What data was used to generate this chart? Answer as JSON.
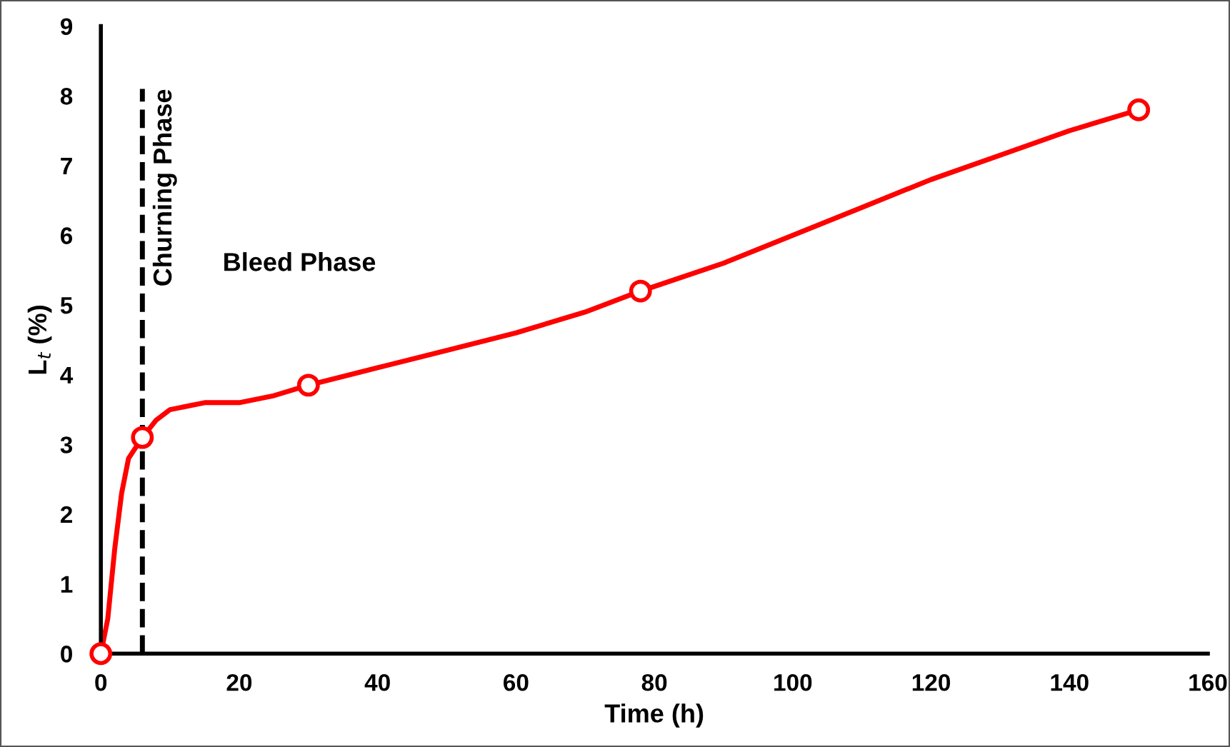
{
  "chart_data": {
    "type": "line",
    "xlabel": "Time (h)",
    "ylabel": "L$_{t}$ (%)",
    "xlim": [
      0,
      160
    ],
    "ylim": [
      0,
      9
    ],
    "xticks": [
      0,
      20,
      40,
      60,
      80,
      100,
      120,
      140,
      160
    ],
    "yticks": [
      0,
      1,
      2,
      3,
      4,
      5,
      6,
      7,
      8,
      9
    ],
    "grid": false,
    "legend": false,
    "series": [
      {
        "color": "#ff0000",
        "marker": "none",
        "line_style": "solid",
        "x": [
          0,
          1,
          2,
          3,
          4,
          6,
          8,
          10,
          15,
          20,
          25,
          30,
          40,
          50,
          60,
          70,
          78,
          90,
          100,
          110,
          120,
          130,
          140,
          150
        ],
        "values": [
          0,
          0.5,
          1.5,
          2.3,
          2.8,
          3.1,
          3.35,
          3.5,
          3.6,
          3.6,
          3.7,
          3.85,
          4.1,
          4.35,
          4.6,
          4.9,
          5.2,
          5.6,
          6.0,
          6.4,
          6.8,
          7.15,
          7.5,
          7.8
        ]
      },
      {
        "type": "scatter",
        "color": "#ff0000",
        "marker": "circle",
        "x": [
          0,
          6,
          30,
          78,
          150
        ],
        "values": [
          0,
          3.1,
          3.85,
          5.2,
          7.8
        ]
      }
    ],
    "ref_lines": [
      {
        "axis": "x",
        "value": 6,
        "label": "Churning Phase",
        "color": "#000000",
        "line_style": "dashed"
      }
    ],
    "annotations": [
      "Bleed Phase"
    ]
  }
}
